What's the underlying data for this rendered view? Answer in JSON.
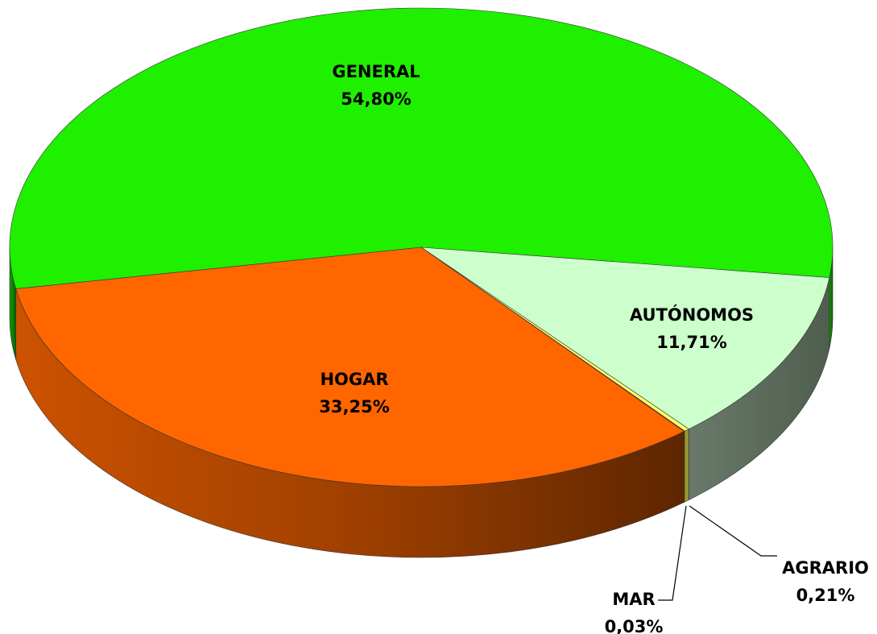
{
  "chart_data": {
    "type": "pie",
    "categories": [
      "GENERAL",
      "AUTÓNOMOS",
      "AGRARIO",
      "MAR",
      "HOGAR"
    ],
    "values": [
      54.8,
      11.71,
      0.21,
      0.03,
      33.25
    ],
    "value_labels": [
      "54,80%",
      "11,71%",
      "0,21%",
      "0,03%",
      "33,25%"
    ],
    "colors": [
      "#1ff000",
      "#ccffcc",
      "#ffff66",
      "#996633",
      "#ff6600"
    ]
  }
}
